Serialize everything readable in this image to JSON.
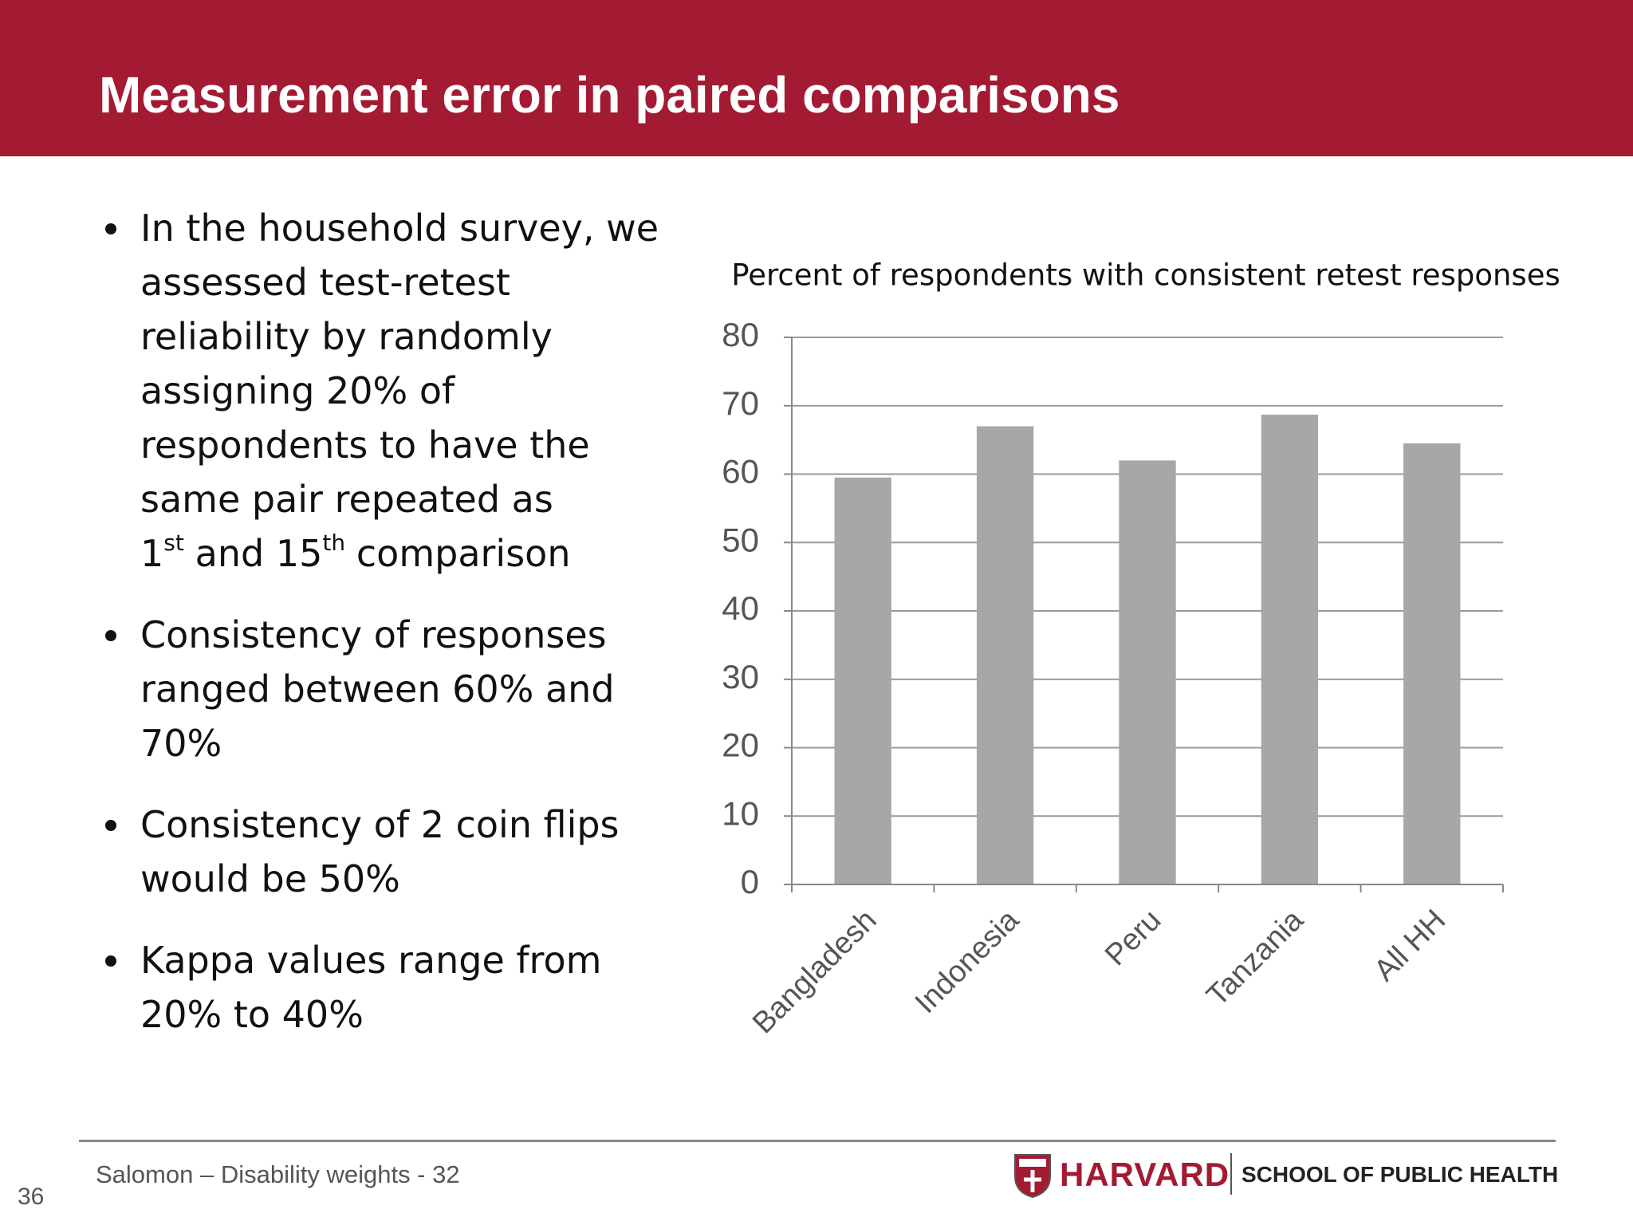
{
  "header": {
    "title": "Measurement error in paired comparisons"
  },
  "bullets": [
    [
      {
        "text": "In the household survey, we assessed test-retest reliability by randomly assigning 20% of respondents to have the same pair repeated as 1"
      },
      {
        "sup": "st"
      },
      {
        "text": "and 15"
      },
      {
        "sup": "th"
      },
      {
        "text": "comparison"
      }
    ],
    [
      {
        "text": "Consistency of responses ranged between 60% and 70%"
      }
    ],
    [
      {
        "text": "Consistency of 2 coin flips would be 50%"
      }
    ],
    [
      {
        "text": "Kappa values range from 20% to 40%"
      }
    ]
  ],
  "chart_data": {
    "type": "bar",
    "title": "Percent of respondents with consistent retest responses",
    "categories": [
      "Bangladesh",
      "Indonesia",
      "Peru",
      "Tanzania",
      "All HH"
    ],
    "values": [
      59.5,
      67,
      62,
      68.7,
      64.5
    ],
    "color": "#a7a6a8",
    "ylim": [
      0,
      80
    ],
    "yticks": [
      0,
      10,
      20,
      30,
      40,
      50,
      60,
      70,
      80
    ],
    "grid": true
  },
  "footer": {
    "source": "Salomon – Disability weights - 32",
    "page": "36",
    "logo_name": "HARVARD",
    "logo_school": "SCHOOL OF PUBLIC HEALTH"
  }
}
